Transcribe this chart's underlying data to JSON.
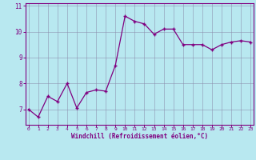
{
  "x": [
    0,
    1,
    2,
    3,
    4,
    5,
    6,
    7,
    8,
    9,
    10,
    11,
    12,
    13,
    14,
    15,
    16,
    17,
    18,
    19,
    20,
    21,
    22,
    23
  ],
  "y": [
    7.0,
    6.7,
    7.5,
    7.3,
    8.0,
    7.05,
    7.65,
    7.75,
    7.7,
    8.7,
    10.6,
    10.4,
    10.3,
    9.9,
    10.1,
    10.1,
    9.5,
    9.5,
    9.5,
    9.3,
    9.5,
    9.6,
    9.65,
    9.6
  ],
  "line_color": "#800080",
  "marker": "+",
  "bg_color": "#b8e8f0",
  "grid_color": "#8888aa",
  "xlabel": "Windchill (Refroidissement éolien,°C)",
  "xlabel_color": "#800080",
  "tick_color": "#800080",
  "axis_color": "#800080",
  "ylim": [
    6.4,
    11.1
  ],
  "yticks": [
    7,
    8,
    9,
    10,
    11
  ],
  "xticks": [
    0,
    1,
    2,
    3,
    4,
    5,
    6,
    7,
    8,
    9,
    10,
    11,
    12,
    13,
    14,
    15,
    16,
    17,
    18,
    19,
    20,
    21,
    22,
    23
  ],
  "xlim": [
    -0.3,
    23.3
  ]
}
